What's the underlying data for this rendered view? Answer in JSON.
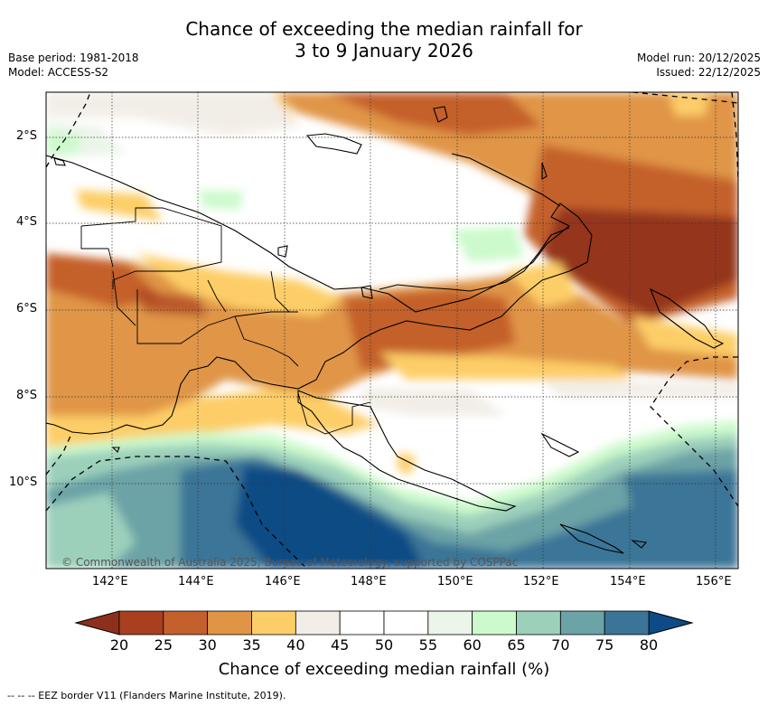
{
  "title": {
    "line1": "Chance of exceeding the median rainfall for",
    "line2": "3 to 9 January 2026"
  },
  "meta": {
    "base_period": "Base period: 1981-2018",
    "model": "Model: ACCESS-S2",
    "model_run": "Model run: 20/12/2025",
    "issued": "Issued: 22/12/2025"
  },
  "axes": {
    "lat_labels": [
      "2°S",
      "4°S",
      "6°S",
      "8°S",
      "10°S"
    ],
    "lon_labels": [
      "142°E",
      "144°E",
      "146°E",
      "148°E",
      "150°E",
      "152°E",
      "154°E",
      "156°E"
    ]
  },
  "copyright": "© Commonwealth of Australia 2025, Bureau of Meteorology, supported by COSPPac",
  "colorbar": {
    "title": "Chance of exceeding median rainfall (%)",
    "ticks": [
      "20",
      "25",
      "30",
      "35",
      "40",
      "45",
      "50",
      "55",
      "60",
      "65",
      "70",
      "75",
      "80"
    ],
    "colors": [
      "#a8401f",
      "#c4602c",
      "#e09546",
      "#fdce68",
      "#f2eee7",
      "#ffffff",
      "#ffffff",
      "#ebf5e9",
      "#ccfacc",
      "#9cd0bb",
      "#6ca3a6",
      "#3b7497",
      "#104c85"
    ],
    "under_color": "#8c2f1d",
    "over_color": "#0d4a86"
  },
  "footnote": "--  --  -- EEZ border V11 (Flanders Marine Institute, 2019)."
}
